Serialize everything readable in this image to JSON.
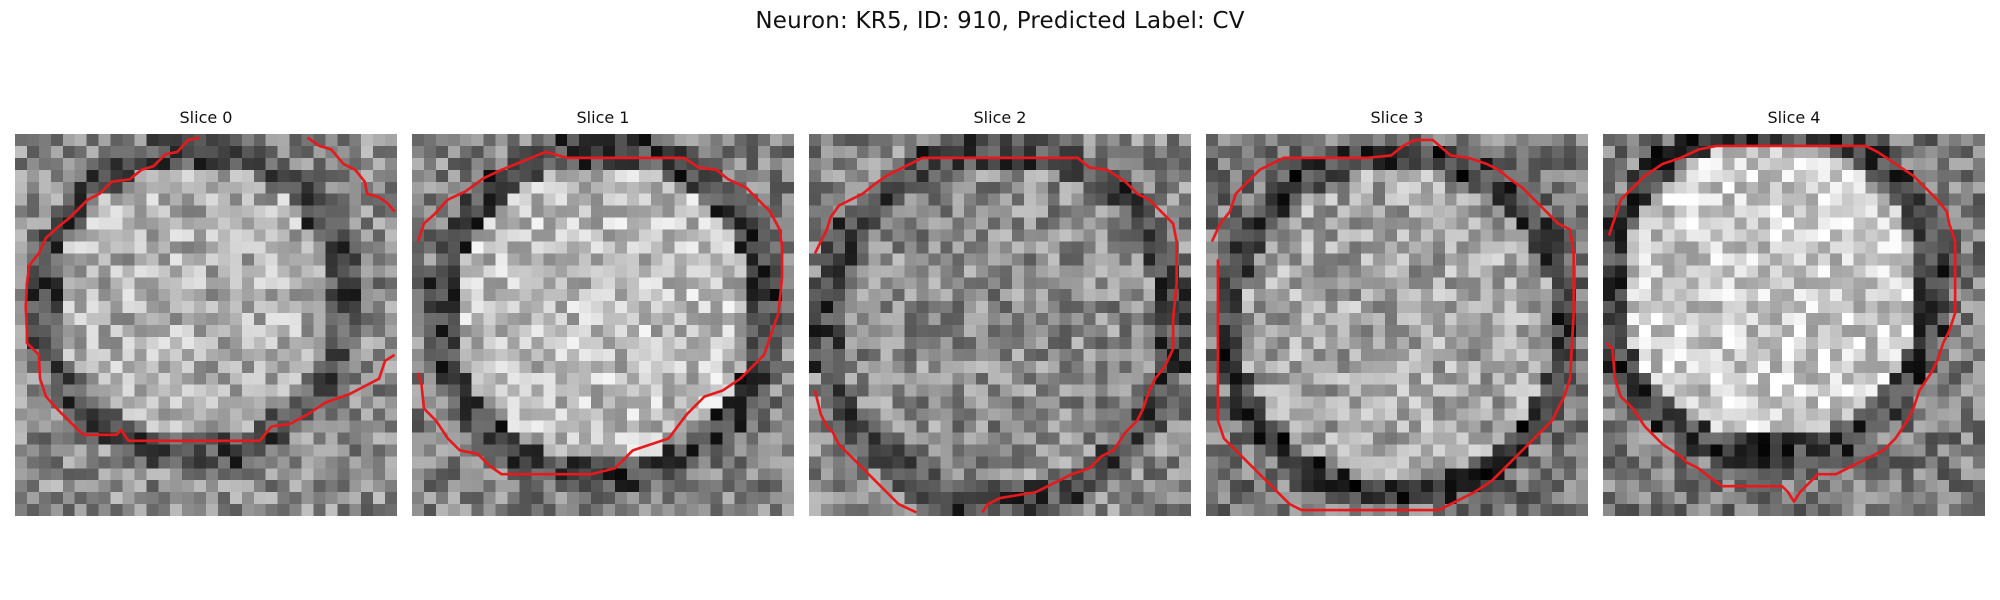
{
  "figure": {
    "title": "Neuron: KR5, ID: 910, Predicted Label: CV",
    "contour_color": "#e8191c",
    "panels": [
      {
        "title": "Slice 0"
      },
      {
        "title": "Slice 1"
      },
      {
        "title": "Slice 2"
      },
      {
        "title": "Slice 3"
      },
      {
        "title": "Slice 4"
      }
    ]
  }
}
